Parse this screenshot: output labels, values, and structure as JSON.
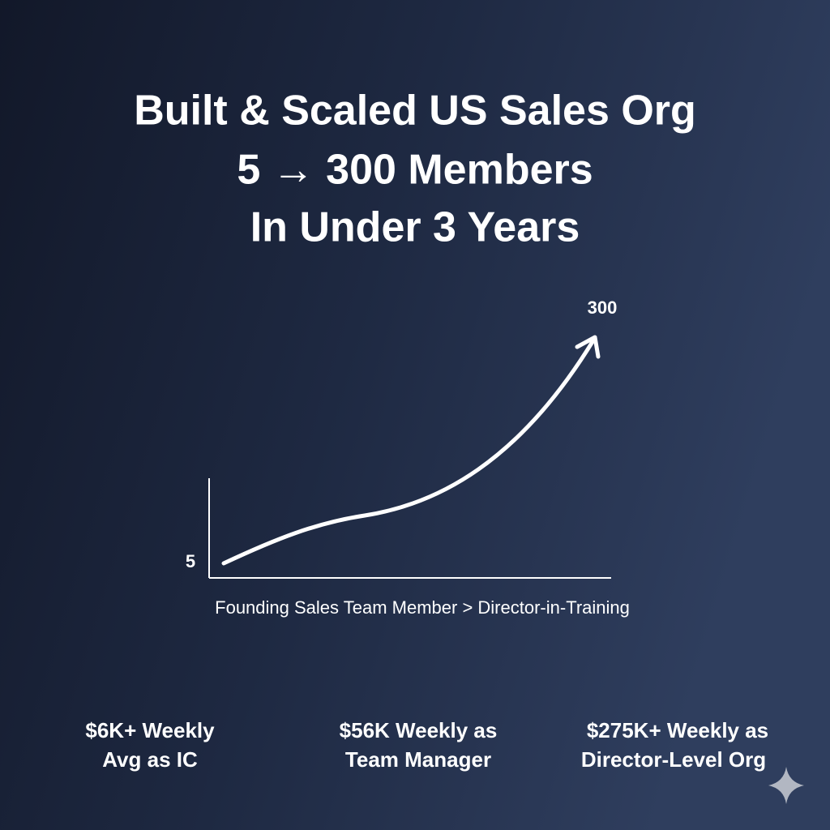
{
  "header": {
    "title_lines": [
      "Built & Scaled US Sales Org",
      "5 → 300 Members",
      "In Under 3 Years"
    ]
  },
  "graphic": {
    "start_label": "5",
    "end_label": "300",
    "caption": "Founding Sales Team Member > Director-in-Training"
  },
  "stats": [
    {
      "lines": [
        "$6K+ Weekly",
        "Avg as IC"
      ]
    },
    {
      "lines": [
        "$56K Weekly as",
        "Team Manager"
      ]
    },
    {
      "lines": [
        "$275K+ Weekly as",
        "Director-Level Org"
      ]
    }
  ]
}
